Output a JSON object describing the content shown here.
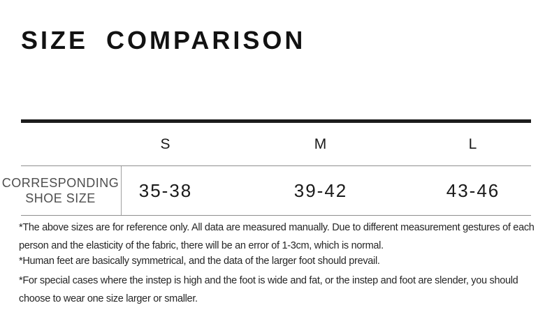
{
  "header": {
    "title": "SIZE COMPARISON"
  },
  "size_table": {
    "columns": [
      "S",
      "M",
      "L"
    ],
    "rows": [
      {
        "label": "CORRESPONDING SHOE SIZE",
        "values": [
          "35-38",
          "39-42",
          "43-46"
        ]
      }
    ]
  },
  "footnotes": [
    "*The above sizes are for reference only. All data are measured manually. Due to different measurement gestures of each person and the elasticity of the fabric, there will be an error of 1-3cm, which is normal.",
    "*Human feet are basically symmetrical, and the data of the larger foot should prevail.",
    "*For special cases where the instep is high and the foot is wide and fat, or the instep and foot are slender, you should choose to wear one size larger or smaller."
  ],
  "colors": {
    "background": "#ffffff",
    "text_primary": "#1a1a1a",
    "text_secondary": "#4e4e4e",
    "text_footnote": "#262626",
    "rule_dark": "#1c1c1c",
    "rule_light": "#8f8f8f"
  }
}
